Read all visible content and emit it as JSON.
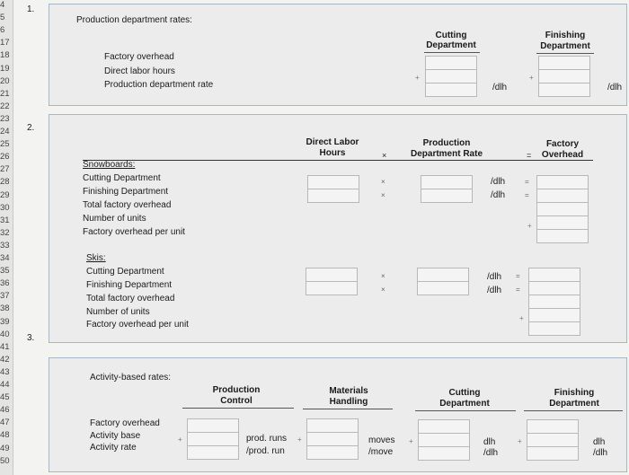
{
  "row_numbers": [
    "4",
    "5",
    "6",
    "17",
    "18",
    "19",
    "20",
    "21",
    "22",
    "23",
    "24",
    "25",
    "26",
    "27",
    "28",
    "29",
    "30",
    "31",
    "32",
    "33",
    "34",
    "35",
    "36",
    "37",
    "38",
    "39",
    "40",
    "41",
    "42",
    "43",
    "44",
    "45",
    "46",
    "47",
    "48",
    "49",
    "50"
  ],
  "q1": {
    "number": "1.",
    "title": "Production department rates:",
    "col_cutting": [
      "Cutting",
      "Department"
    ],
    "col_finishing": [
      "Finishing",
      "Department"
    ],
    "rows": [
      "Factory overhead",
      "Direct labor hours",
      "Production department rate"
    ],
    "unit": "/dlh"
  },
  "q2": {
    "number": "2.",
    "col_dlh": [
      "Direct Labor",
      "Hours"
    ],
    "col_rate": [
      "Production",
      "Department Rate"
    ],
    "col_fo": [
      "Factory",
      "Overhead"
    ],
    "times": "×",
    "equals": "=",
    "unit": "/dlh",
    "snowboards": {
      "heading": "Snowboards:",
      "rows": [
        "Cutting Department",
        "Finishing Department",
        "Total factory overhead",
        "Number of units",
        "Factory overhead per unit"
      ]
    },
    "skis": {
      "heading": "Skis:",
      "rows": [
        "Cutting Department",
        "Finishing Department",
        "Total factory overhead",
        "Number of units",
        "Factory overhead per unit"
      ]
    }
  },
  "q3": {
    "number": "3.",
    "title": "Activity-based rates:",
    "col_pc": [
      "Production",
      "Control"
    ],
    "col_mh": [
      "Materials",
      "Handling"
    ],
    "col_cd": [
      "Cutting",
      "Department"
    ],
    "col_fd": [
      "Finishing",
      "Department"
    ],
    "rows": [
      "Factory overhead",
      "Activity base",
      "Activity rate"
    ],
    "pc_units": [
      "prod. runs",
      "/prod. run"
    ],
    "mh_units": [
      "moves",
      "/move"
    ],
    "cd_units": [
      "dlh",
      "/dlh"
    ],
    "fd_units": [
      "dlh",
      "/dlh"
    ]
  },
  "plus_sign": "+"
}
